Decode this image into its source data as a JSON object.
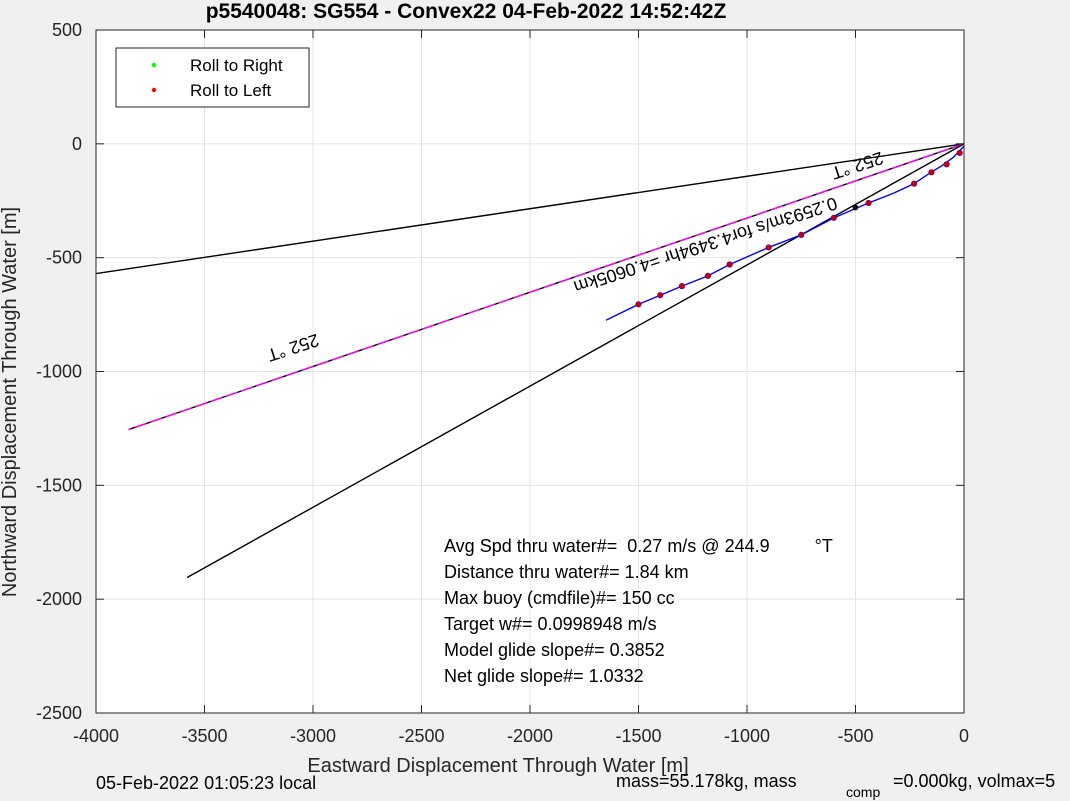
{
  "chart_data": {
    "type": "line",
    "title": "p5540048: SG554 - Convex22 04-Feb-2022 14:52:42Z",
    "xlabel": "Eastward Displacement Through Water [m]",
    "ylabel": "Northward Displacement Through Water [m]",
    "xlim": [
      -4000,
      0
    ],
    "ylim": [
      -2500,
      500
    ],
    "xticks": [
      -4000,
      -3500,
      -3000,
      -2500,
      -2000,
      -1500,
      -1000,
      -500,
      0
    ],
    "yticks": [
      -2500,
      -2000,
      -1500,
      -1000,
      -500,
      0,
      500
    ],
    "grid": true,
    "legend": {
      "placement": "top-left",
      "entries": [
        {
          "label": "Roll to Right",
          "color": "#00ff00"
        },
        {
          "label": "Roll to Left",
          "color": "#ff0000"
        }
      ]
    },
    "lines": [
      {
        "role": "heading-line",
        "color": "#000000",
        "points": [
          [
            0,
            0
          ],
          [
            -4000,
            -570
          ]
        ]
      },
      {
        "role": "target-line",
        "color": "#000000",
        "dash_color": "#ff00ff",
        "points": [
          [
            0,
            0
          ],
          [
            -3850,
            -1255
          ]
        ]
      },
      {
        "role": "depth-average-line",
        "color": "#000000",
        "points": [
          [
            0,
            0
          ],
          [
            -3580,
            -1905
          ]
        ]
      }
    ],
    "track": {
      "color": "#0000ff",
      "points": [
        [
          0,
          -10
        ],
        [
          -50,
          -60
        ],
        [
          -100,
          -95
        ],
        [
          -160,
          -130
        ],
        [
          -230,
          -175
        ],
        [
          -320,
          -215
        ],
        [
          -440,
          -260
        ],
        [
          -600,
          -325
        ],
        [
          -750,
          -400
        ],
        [
          -900,
          -455
        ],
        [
          -1080,
          -530
        ],
        [
          -1180,
          -580
        ],
        [
          -1300,
          -625
        ],
        [
          -1400,
          -665
        ],
        [
          -1500,
          -705
        ],
        [
          -1650,
          -775
        ]
      ]
    },
    "roll_left_points": [
      [
        -20,
        -40
      ],
      [
        -80,
        -90
      ],
      [
        -150,
        -125
      ],
      [
        -230,
        -175
      ],
      [
        -440,
        -260
      ],
      [
        -600,
        -325
      ],
      [
        -750,
        -400
      ],
      [
        -900,
        -455
      ],
      [
        -1080,
        -530
      ],
      [
        -1180,
        -580
      ],
      [
        -1300,
        -625
      ],
      [
        -1400,
        -665
      ],
      [
        -1500,
        -705
      ]
    ],
    "waypoint_markers": [
      [
        -500,
        -280
      ]
    ],
    "line_labels": [
      {
        "text": "252 °T",
        "x": -3100,
        "y": -870,
        "angle": 162
      },
      {
        "text": "252 °T",
        "x": -500,
        "y": -70,
        "angle": 162
      },
      {
        "text": "0.2593m/s for4.3494hr =4.0605km",
        "x": -1200,
        "y": -420,
        "angle": 162
      }
    ],
    "annotations": [
      "Avg Spd thru water#=  0.27 m/s @ 244.9         °T",
      "Distance thru water#=  1.84 km",
      "Max buoy (cmdfile)#= 150 cc",
      "Target w#= 0.0998948 m/s",
      "Model glide slope#= 0.3852",
      "Net glide slope#= 1.0332"
    ]
  },
  "footer": {
    "local_time": "05-Feb-2022 01:05:23 local",
    "mass_text": "mass=55.178kg, mass",
    "mass_sub": "comp",
    "mass_rest": "=0.000kg, volmax=5"
  }
}
